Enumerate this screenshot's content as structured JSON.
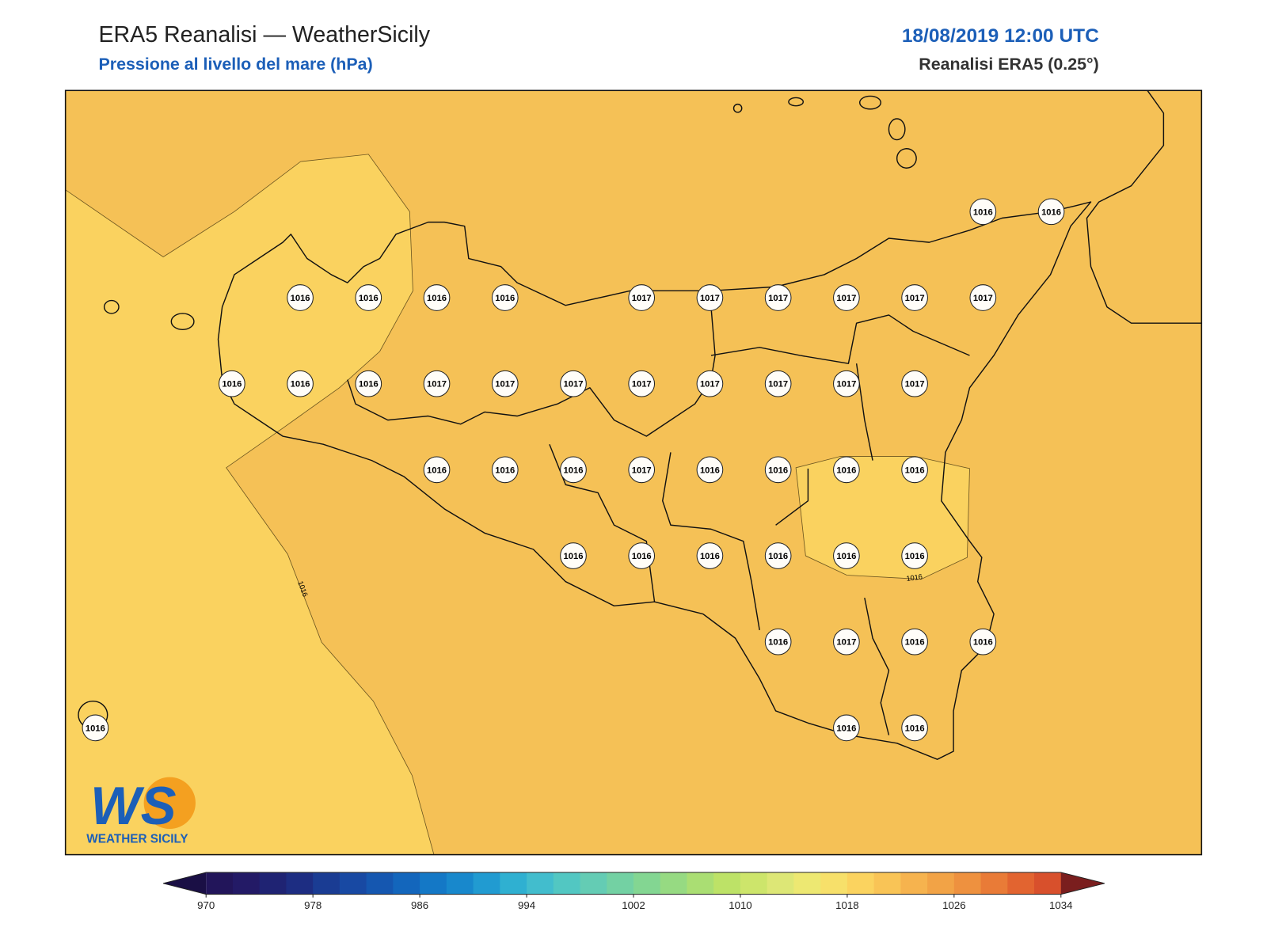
{
  "header": {
    "title": "ERA5 Reanalisi — WeatherSicily",
    "subtitle": "Pressione al livello del mare (hPa)",
    "datetime": "18/08/2019 12:00 UTC",
    "source": "Reanalisi ERA5 (0.25°)"
  },
  "map": {
    "fill_color": "#f5c156",
    "light_fill_color": "#fad25f",
    "contour_level": 1016,
    "stations": {
      "rows": [
        [
          null,
          null,
          null,
          null,
          null,
          null,
          null,
          null,
          null,
          null,
          null,
          null,
          null,
          1016,
          1016
        ],
        [
          null,
          null,
          null,
          1016,
          1016,
          1016,
          1016,
          null,
          1017,
          1017,
          1017,
          1017,
          1017,
          1017,
          null
        ],
        [
          null,
          null,
          1016,
          1016,
          1016,
          1017,
          1017,
          1017,
          1017,
          1017,
          1017,
          1017,
          1017,
          null,
          null
        ],
        [
          null,
          null,
          null,
          null,
          null,
          1016,
          1016,
          1016,
          1017,
          1016,
          1016,
          1016,
          1016,
          null,
          null
        ],
        [
          null,
          null,
          null,
          null,
          null,
          null,
          null,
          1016,
          1016,
          1016,
          1016,
          1016,
          1016,
          null,
          null
        ],
        [
          null,
          null,
          null,
          null,
          null,
          null,
          null,
          null,
          null,
          null,
          1016,
          1017,
          1016,
          1016,
          null
        ],
        [
          1016,
          null,
          null,
          null,
          null,
          null,
          null,
          null,
          null,
          null,
          null,
          1016,
          1016,
          null,
          null
        ]
      ]
    }
  },
  "logo": {
    "mark": "WS",
    "name": "WEATHER SICILY"
  },
  "colorbar": {
    "ticks": [
      970,
      978,
      986,
      994,
      1002,
      1010,
      1018,
      1026,
      1034
    ],
    "under_color": "#1a0f45",
    "over_color": "#7a1e1e",
    "colors": [
      "#22155a",
      "#231a66",
      "#1f2373",
      "#1d2d82",
      "#1a3c93",
      "#1849a3",
      "#1557b0",
      "#1366bc",
      "#1478c6",
      "#1888cc",
      "#219bd1",
      "#2fb0d1",
      "#42bdcd",
      "#52c7c2",
      "#64ccb4",
      "#73d1a3",
      "#83d692",
      "#96da82",
      "#aade73",
      "#bde267",
      "#cde56b",
      "#dde776",
      "#ede872",
      "#f7e06a",
      "#fbd35f",
      "#f9c456",
      "#f6b34e",
      "#f2a346",
      "#ee913f",
      "#e97b37",
      "#e26430",
      "#d8502c"
    ]
  }
}
